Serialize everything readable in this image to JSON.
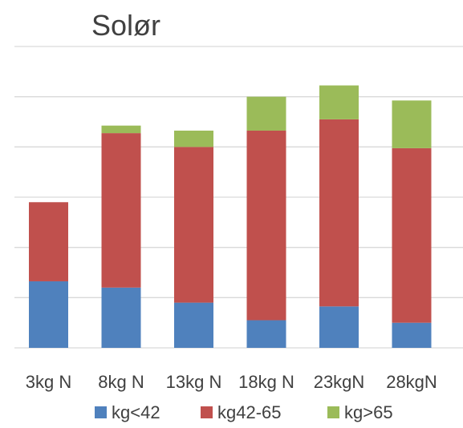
{
  "chart_data": {
    "type": "bar",
    "stacked": true,
    "title": "Solør",
    "xlabel": "",
    "ylabel": "",
    "categories": [
      "3kg N",
      "8kg N",
      "13kg N",
      "18kg N",
      "23kgN",
      "28kgN"
    ],
    "series": [
      {
        "name": "kg<42",
        "color": "#4F81BD",
        "values": [
          26.5,
          24,
          18,
          11,
          16.5,
          10
        ]
      },
      {
        "name": "kg42-65",
        "color": "#C0504D",
        "values": [
          31.5,
          61.5,
          62,
          75.5,
          74.5,
          69.5
        ]
      },
      {
        "name": "kg>65",
        "color": "#9BBB59",
        "values": [
          0,
          3,
          6.5,
          13.5,
          13.5,
          19
        ]
      }
    ],
    "ylim": [
      0,
      120
    ],
    "y_gridlines": [
      0,
      20,
      40,
      60,
      80,
      100,
      120
    ],
    "y_tick_labels_shown": false,
    "grid": true,
    "legend_placement": "bottom"
  }
}
